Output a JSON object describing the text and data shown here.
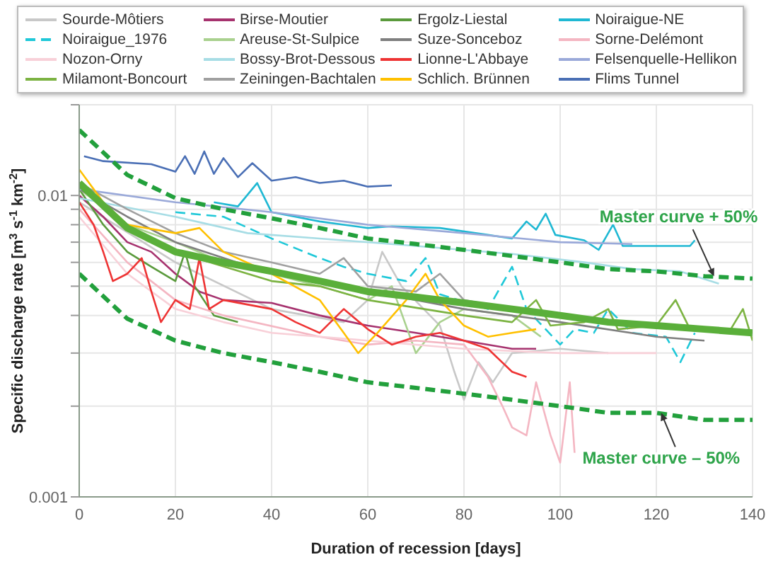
{
  "chart_data": {
    "type": "line",
    "xlabel": "Duration of recession [days]",
    "ylabel": "Specific discharge rate [m$^{3}$ s$^{-1}$ km$^{-2}$]",
    "log": "y",
    "grid": true,
    "legend": "top",
    "marker": "none",
    "xlim": [
      0,
      140
    ],
    "xticks": [
      0,
      20,
      40,
      60,
      80,
      100,
      120,
      140
    ],
    "ylim": [
      0.001,
      0.02
    ],
    "yticks": [
      0.001,
      {
        "value": 0.002,
        "label": null
      },
      {
        "value": 0.003,
        "label": null
      },
      {
        "value": 0.004,
        "label": null
      },
      {
        "value": 0.005,
        "label": null
      },
      {
        "value": 0.006,
        "label": null
      },
      {
        "value": 0.007,
        "label": null
      },
      {
        "value": 0.008,
        "label": null
      },
      {
        "value": 0.009,
        "label": null
      },
      0.01,
      {
        "value": 0.02,
        "label": null
      }
    ],
    "series": [
      {
        "name": "Sourde-Môtiers",
        "color": "#c8c8c8",
        "x": [
          0,
          20,
          40,
          55,
          60,
          63,
          67,
          75,
          78,
          80,
          83,
          86,
          90,
          100,
          110
        ],
        "values": [
          0.0095,
          0.006,
          0.0042,
          0.0038,
          0.0045,
          0.0065,
          0.005,
          0.0037,
          0.0026,
          0.0021,
          0.0028,
          0.0024,
          0.003,
          0.0031,
          0.003
        ]
      },
      {
        "name": "Birse-Moutier",
        "color": "#a6326e",
        "x": [
          0,
          5,
          10,
          15,
          20,
          25,
          30,
          40,
          50,
          60,
          70,
          80,
          90,
          95
        ],
        "values": [
          0.01,
          0.0085,
          0.007,
          0.0065,
          0.0055,
          0.0048,
          0.0045,
          0.0044,
          0.004,
          0.0037,
          0.0035,
          0.0033,
          0.0031,
          0.0031
        ]
      },
      {
        "name": "Ergolz-Liestal",
        "color": "#5a9a3c",
        "x": [
          0,
          5,
          10,
          15,
          20,
          22,
          24,
          28,
          33
        ],
        "values": [
          0.0105,
          0.008,
          0.0065,
          0.0058,
          0.0052,
          0.0065,
          0.005,
          0.004,
          0.0038
        ]
      },
      {
        "name": "Noiraigue-NE",
        "color": "#1fb8d3",
        "x": [
          28,
          33,
          37,
          40,
          45,
          50,
          55,
          60,
          65,
          75,
          85,
          90,
          93,
          95,
          97,
          99,
          105,
          108,
          111,
          113,
          120,
          127,
          128
        ],
        "values": [
          0.0095,
          0.0092,
          0.011,
          0.0088,
          0.0085,
          0.0082,
          0.008,
          0.0078,
          0.0079,
          0.0078,
          0.0074,
          0.0072,
          0.0082,
          0.0077,
          0.0087,
          0.0074,
          0.0071,
          0.0066,
          0.008,
          0.0068,
          0.0068,
          0.0068,
          0.0071
        ]
      },
      {
        "name": "Noiraigue_1976",
        "color": "#1fc8d8",
        "line_style": "dashed",
        "x": [
          20,
          30,
          40,
          50,
          55,
          60,
          68,
          72,
          75,
          85,
          90,
          93,
          100,
          103,
          107,
          110,
          115,
          122,
          125,
          128
        ],
        "values": [
          0.0088,
          0.0085,
          0.0072,
          0.0062,
          0.0058,
          0.0055,
          0.0052,
          0.0062,
          0.0047,
          0.0042,
          0.0058,
          0.0042,
          0.0032,
          0.0036,
          0.0035,
          0.0042,
          0.0035,
          0.0034,
          0.0028,
          0.0035
        ]
      },
      {
        "name": "Areuse-St-Sulpice",
        "color": "#a9d18e",
        "x": [
          0,
          10,
          20,
          30,
          40,
          50,
          60,
          65,
          70,
          75,
          80,
          90,
          96
        ],
        "values": [
          0.0105,
          0.008,
          0.007,
          0.006,
          0.0055,
          0.005,
          0.0045,
          0.005,
          0.003,
          0.0038,
          0.0042,
          0.004,
          0.0034
        ]
      },
      {
        "name": "Suze-Sonceboz",
        "color": "#7f7f7f",
        "x": [
          0,
          10,
          20,
          40,
          60,
          70,
          80,
          100,
          120,
          130
        ],
        "values": [
          0.0105,
          0.0085,
          0.007,
          0.0055,
          0.0048,
          0.0045,
          0.0042,
          0.0038,
          0.0034,
          0.0033
        ]
      },
      {
        "name": "Sorne-Delémont",
        "color": "#f4b6c2",
        "x": [
          0,
          10,
          20,
          30,
          50,
          60,
          70,
          80,
          85,
          88,
          90,
          93,
          95,
          98,
          100,
          102,
          103
        ],
        "values": [
          0.009,
          0.006,
          0.0045,
          0.004,
          0.0034,
          0.0032,
          0.0033,
          0.0032,
          0.0025,
          0.002,
          0.0017,
          0.0016,
          0.0024,
          0.0016,
          0.0013,
          0.0024,
          0.0014
        ]
      },
      {
        "name": "Nozon-Orny",
        "color": "#f8d0d8",
        "x": [
          0,
          10,
          20,
          25,
          30,
          40,
          60,
          80,
          100,
          120
        ],
        "values": [
          0.0085,
          0.0055,
          0.0042,
          0.004,
          0.0038,
          0.0035,
          0.0033,
          0.0031,
          0.003,
          0.003
        ]
      },
      {
        "name": "Bossy-Brot-Dessous",
        "color": "#a7dde5",
        "x": [
          0,
          20,
          35,
          50,
          70,
          90,
          105,
          115,
          125,
          133
        ],
        "values": [
          0.0098,
          0.0085,
          0.0075,
          0.0072,
          0.0068,
          0.0064,
          0.006,
          0.0057,
          0.0056,
          0.0051
        ]
      },
      {
        "name": "Lionne-L'Abbaye",
        "color": "#ee3333",
        "x": [
          0,
          3,
          5,
          7,
          10,
          13,
          15,
          17,
          20,
          23,
          25,
          27,
          30,
          40,
          45,
          50,
          55,
          60,
          65,
          70,
          75,
          80,
          85,
          90,
          93
        ],
        "values": [
          0.0095,
          0.008,
          0.0065,
          0.0052,
          0.0055,
          0.0062,
          0.0048,
          0.0038,
          0.0045,
          0.0042,
          0.0062,
          0.0042,
          0.0045,
          0.0042,
          0.0038,
          0.0035,
          0.0042,
          0.0036,
          0.0032,
          0.0034,
          0.0035,
          0.0033,
          0.0031,
          0.0026,
          0.0025
        ]
      },
      {
        "name": "Felsenquelle-Hellikon",
        "color": "#9aa9d9",
        "x": [
          0,
          20,
          40,
          60,
          80,
          100,
          115
        ],
        "values": [
          0.0105,
          0.0095,
          0.0088,
          0.008,
          0.0075,
          0.007,
          0.0069
        ]
      },
      {
        "name": "Milamont-Boncourt",
        "color": "#7cb342",
        "x": [
          0,
          10,
          20,
          40,
          50,
          60,
          80,
          90,
          95,
          98,
          105,
          110,
          112,
          120,
          124,
          127,
          135,
          138,
          140
        ],
        "values": [
          0.011,
          0.008,
          0.0065,
          0.0052,
          0.005,
          0.0045,
          0.004,
          0.0038,
          0.0045,
          0.0037,
          0.0038,
          0.0042,
          0.0036,
          0.0037,
          0.0045,
          0.0036,
          0.0035,
          0.0042,
          0.0033
        ]
      },
      {
        "name": "Zeiningen-Bachtalen",
        "color": "#a0a0a0",
        "x": [
          0,
          10,
          20,
          30,
          40,
          50,
          55,
          60,
          70,
          75,
          80,
          90,
          100,
          110
        ],
        "values": [
          0.011,
          0.009,
          0.0075,
          0.0065,
          0.006,
          0.0055,
          0.0062,
          0.005,
          0.0048,
          0.0055,
          0.0045,
          0.0042,
          0.004,
          0.0038
        ]
      },
      {
        "name": "Schlich. Brünnen",
        "color": "#ffc000",
        "x": [
          0,
          5,
          10,
          20,
          25,
          30,
          40,
          50,
          55,
          58,
          62,
          68,
          72,
          75,
          80,
          85,
          90,
          95
        ],
        "values": [
          0.0122,
          0.0095,
          0.008,
          0.0075,
          0.0078,
          0.0065,
          0.0055,
          0.0045,
          0.0035,
          0.003,
          0.0035,
          0.0045,
          0.0055,
          0.0045,
          0.0037,
          0.0034,
          0.0035,
          0.0036
        ]
      },
      {
        "name": "Flims Tunnel",
        "color": "#4a6fb5",
        "x": [
          1,
          5,
          15,
          20,
          22,
          24,
          26,
          28,
          30,
          33,
          36,
          40,
          45,
          50,
          55,
          60,
          65
        ],
        "values": [
          0.0135,
          0.013,
          0.0127,
          0.012,
          0.0135,
          0.0118,
          0.014,
          0.0118,
          0.0133,
          0.0115,
          0.0128,
          0.0112,
          0.0115,
          0.011,
          0.0112,
          0.0107,
          0.0108
        ]
      },
      {
        "color": "#5aaf3a",
        "x": [
          0,
          10,
          20,
          30,
          40,
          50,
          60,
          70,
          80,
          90,
          100,
          110,
          120,
          130,
          140
        ],
        "values": [
          0.011,
          0.0078,
          0.0065,
          0.006,
          0.0056,
          0.0052,
          0.0048,
          0.0046,
          0.0044,
          0.0042,
          0.004,
          0.0038,
          0.0037,
          0.0036,
          0.0035
        ]
      },
      {
        "color": "#22a03c",
        "line_style": "dashed",
        "x": [
          0,
          10,
          20,
          30,
          40,
          50,
          60,
          70,
          80,
          90,
          100,
          110,
          120,
          130,
          140
        ],
        "values": [
          0.0165,
          0.0117,
          0.0098,
          0.009,
          0.0084,
          0.0078,
          0.0072,
          0.0069,
          0.0066,
          0.0063,
          0.006,
          0.0057,
          0.0056,
          0.0054,
          0.0053
        ]
      },
      {
        "color": "#22a03c",
        "line_style": "dashed",
        "x": [
          0,
          10,
          20,
          30,
          40,
          50,
          60,
          70,
          80,
          90,
          100,
          110,
          120,
          130,
          140
        ],
        "values": [
          0.0055,
          0.0039,
          0.0033,
          0.003,
          0.0028,
          0.0026,
          0.0024,
          0.0023,
          0.0022,
          0.0021,
          0.002,
          0.0019,
          0.0019,
          0.0018,
          0.0018
        ]
      }
    ],
    "annotations": [
      {
        "text": "Master curve + 50%",
        "x": 132,
        "y": 0.0054
      },
      {
        "text": "Master curve – 50%",
        "x": 121,
        "y": 0.0019
      }
    ]
  }
}
